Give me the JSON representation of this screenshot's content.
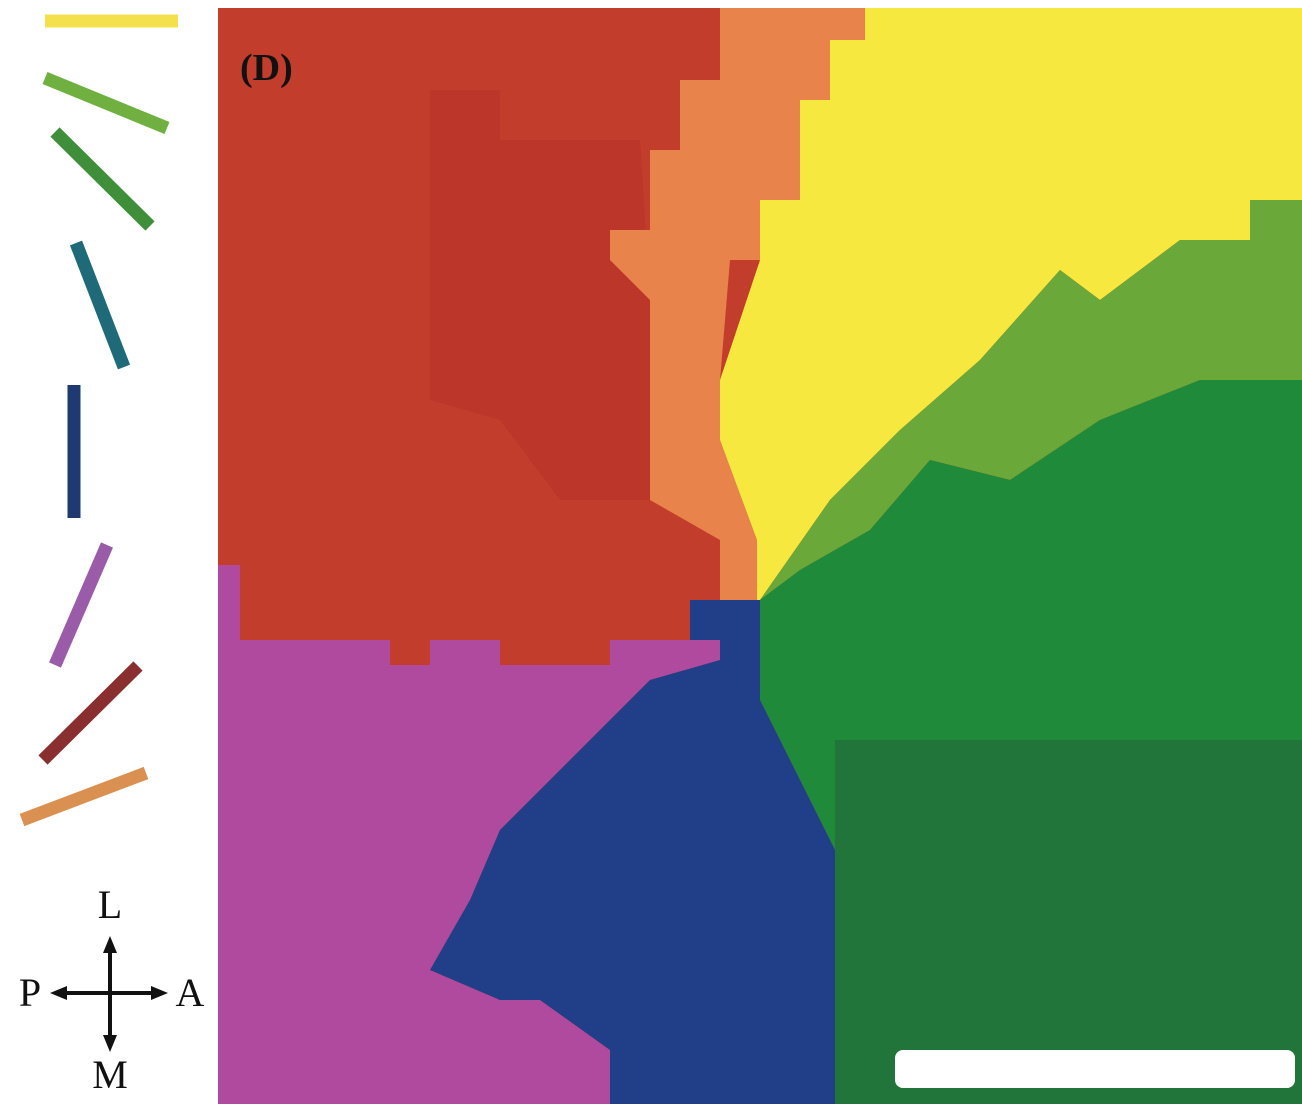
{
  "panel_label": "(D)",
  "compass": {
    "up": "L",
    "left": "P",
    "right": "A",
    "down": "M"
  }
}
